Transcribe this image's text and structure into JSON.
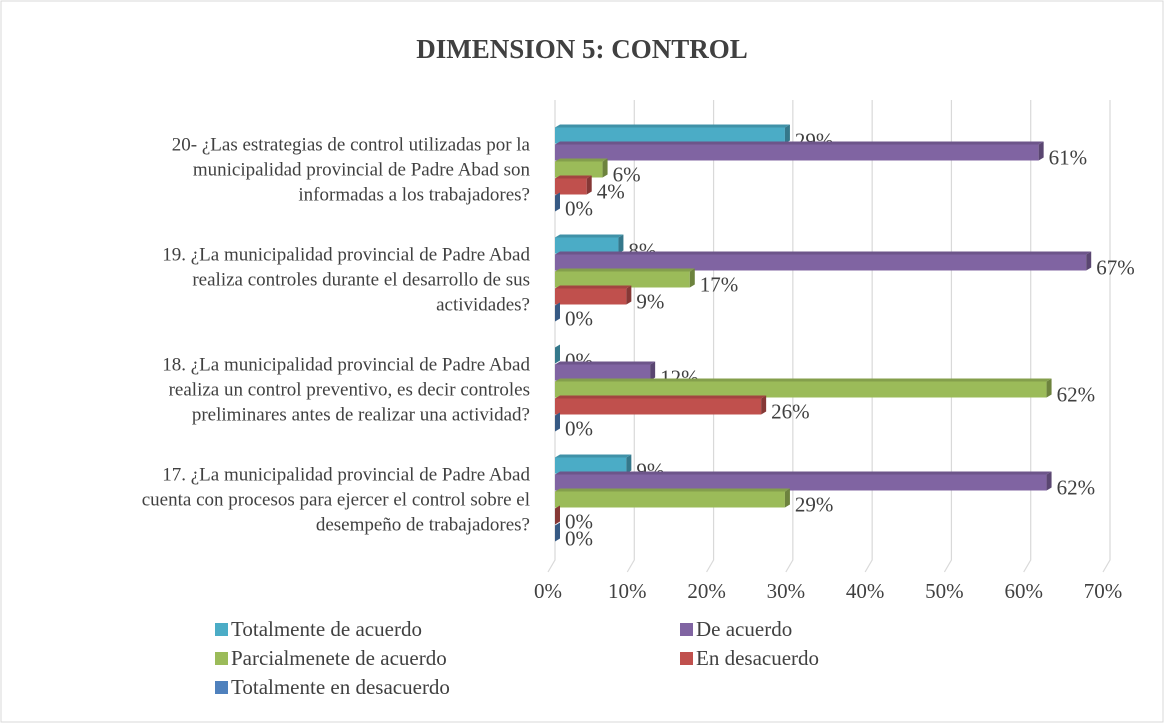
{
  "chart_data": {
    "type": "bar",
    "orientation": "horizontal",
    "title": "DIMENSION 5: CONTROL",
    "categories": [
      "20- ¿Las estrategias de control utilizadas por la\nmunicipalidad provincial de Padre Abad son\ninformadas a los trabajadores?",
      "19. ¿La municipalidad provincial de Padre Abad\nrealiza controles durante el desarrollo de sus\nactividades?",
      "18. ¿La municipalidad provincial de Padre Abad\nrealiza un control preventivo, es decir controles\npreliminares antes de realizar una actividad?",
      "17.  ¿La municipalidad provincial de Padre Abad\ncuenta con procesos para ejercer el control sobre el\ndesempeño de trabajadores?"
    ],
    "series": [
      {
        "name": "Totalmente de  acuerdo",
        "color": "#4bacc6",
        "values": [
          29,
          8,
          0,
          9
        ],
        "value_labels": [
          "29%",
          "8%",
          "0%",
          "9%"
        ]
      },
      {
        "name": "De acuerdo",
        "color": "#8064a2",
        "values": [
          61,
          67,
          12,
          62
        ],
        "value_labels": [
          "61%",
          "67%",
          "12%",
          "62%"
        ]
      },
      {
        "name": "Parcialmenete de acuerdo",
        "color": "#9bbb59",
        "values": [
          6,
          17,
          62,
          29
        ],
        "value_labels": [
          "6%",
          "17%",
          "62%",
          "29%"
        ]
      },
      {
        "name": "En desacuerdo",
        "color": "#c0504d",
        "values": [
          4,
          9,
          26,
          0
        ],
        "value_labels": [
          "4%",
          "9%",
          "26%",
          "0%"
        ]
      },
      {
        "name": "Totalmente en desacuerdo",
        "color": "#4f81bd",
        "values": [
          0,
          0,
          0,
          0
        ],
        "value_labels": [
          "0%",
          "0%",
          "0%",
          "0%"
        ]
      }
    ],
    "xlim": [
      0,
      70
    ],
    "xticks": [
      {
        "value": 0,
        "label": "0%"
      },
      {
        "value": 10,
        "label": "10%"
      },
      {
        "value": 20,
        "label": "20%"
      },
      {
        "value": 30,
        "label": "30%"
      },
      {
        "value": 40,
        "label": "40%"
      },
      {
        "value": 50,
        "label": "50%"
      },
      {
        "value": 60,
        "label": "60%"
      },
      {
        "value": 70,
        "label": "70%"
      }
    ],
    "grid": true,
    "legend": "bottom"
  }
}
